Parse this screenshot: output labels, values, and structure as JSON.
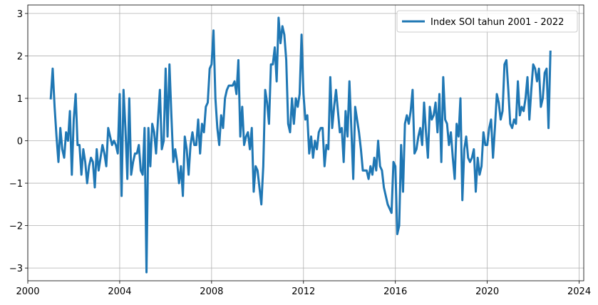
{
  "chart_data": {
    "type": "line",
    "title": "",
    "xlabel": "",
    "ylabel": "",
    "xlim": [
      2000.0,
      2024.2
    ],
    "ylim": [
      -3.3,
      3.2
    ],
    "x_ticks": [
      2000,
      2004,
      2008,
      2012,
      2016,
      2020,
      2024
    ],
    "y_ticks": [
      -3,
      -2,
      -1,
      0,
      1,
      2,
      3
    ],
    "x_tick_labels": [
      "2000",
      "2004",
      "2008",
      "2012",
      "2016",
      "2020",
      "2024"
    ],
    "y_tick_labels": [
      "−3",
      "−2",
      "−1",
      "0",
      "1",
      "2",
      "3"
    ],
    "grid": true,
    "legend": {
      "position": "top-right",
      "entries": [
        "Index SOI tahun 2001 - 2022"
      ]
    },
    "color": "#1f77b4",
    "series": [
      {
        "name": "Index SOI tahun 2001 - 2022",
        "x_start": 2001.0,
        "x_step": 0.0833333,
        "values": [
          1.0,
          1.7,
          0.8,
          0.1,
          -0.5,
          0.3,
          -0.2,
          -0.4,
          0.2,
          0.0,
          0.7,
          -0.8,
          0.5,
          1.1,
          -0.1,
          -0.1,
          -0.8,
          -0.2,
          -0.5,
          -1.0,
          -0.6,
          -0.4,
          -0.5,
          -1.1,
          -0.2,
          -0.7,
          -0.4,
          -0.1,
          -0.3,
          -0.6,
          0.3,
          0.1,
          -0.1,
          0.0,
          -0.1,
          -0.3,
          1.1,
          -1.3,
          1.2,
          0.3,
          -0.9,
          1.0,
          -0.8,
          -0.5,
          -0.3,
          -0.3,
          -0.1,
          -0.7,
          -0.8,
          0.3,
          -3.1,
          0.3,
          -0.6,
          0.4,
          0.2,
          -0.3,
          0.5,
          1.2,
          -0.2,
          0.0,
          1.7,
          0.1,
          1.8,
          0.6,
          -0.5,
          -0.2,
          -0.5,
          -1.0,
          -0.6,
          -1.3,
          0.1,
          -0.2,
          -0.8,
          -0.1,
          0.2,
          -0.1,
          -0.1,
          0.5,
          -0.3,
          0.4,
          0.2,
          0.8,
          0.9,
          1.7,
          1.8,
          2.6,
          1.0,
          0.3,
          -0.1,
          0.6,
          0.3,
          1.0,
          1.2,
          1.3,
          1.3,
          1.3,
          1.4,
          1.1,
          1.9,
          0.1,
          0.8,
          -0.1,
          0.1,
          0.2,
          -0.2,
          0.3,
          -1.2,
          -0.6,
          -0.7,
          -1.1,
          -1.5,
          -0.6,
          1.2,
          0.9,
          0.4,
          1.8,
          1.8,
          2.2,
          1.4,
          2.9,
          2.3,
          2.7,
          2.5,
          1.9,
          0.4,
          0.2,
          1.0,
          0.4,
          1.0,
          0.8,
          1.1,
          2.5,
          1.1,
          0.5,
          0.6,
          -0.3,
          0.1,
          -0.4,
          0.0,
          -0.2,
          0.2,
          0.3,
          0.3,
          -0.6,
          -0.1,
          -0.2,
          1.5,
          0.3,
          0.8,
          1.2,
          0.7,
          0.2,
          0.3,
          -0.5,
          0.7,
          0.1,
          1.4,
          0.3,
          -0.9,
          0.8,
          0.5,
          0.2,
          -0.2,
          -0.7,
          -0.7,
          -0.7,
          -0.9,
          -0.6,
          -0.8,
          -0.4,
          -0.7,
          0.0,
          -0.6,
          -0.7,
          -1.1,
          -1.3,
          -1.5,
          -1.6,
          -1.7,
          -0.5,
          -0.6,
          -2.2,
          -2.0,
          -0.1,
          -1.2,
          0.4,
          0.6,
          0.4,
          0.7,
          1.2,
          -0.3,
          -0.2,
          0.1,
          0.3,
          -0.1,
          0.9,
          0.2,
          -0.4,
          0.8,
          0.5,
          0.6,
          0.9,
          0.2,
          1.1,
          -0.5,
          1.5,
          0.5,
          0.4,
          -0.1,
          0.2,
          -0.4,
          -0.9,
          0.4,
          0.1,
          1.0,
          -1.4,
          -0.2,
          0.1,
          -0.4,
          -0.5,
          -0.4,
          -0.2,
          -1.2,
          -0.4,
          -0.8,
          -0.6,
          0.2,
          -0.1,
          -0.1,
          0.3,
          0.5,
          -0.4,
          0.3,
          1.1,
          0.9,
          0.5,
          0.7,
          1.8,
          1.9,
          1.2,
          0.4,
          0.3,
          0.5,
          0.4,
          1.4,
          0.6,
          0.8,
          0.7,
          1.0,
          1.5,
          0.5,
          1.2,
          1.8,
          1.7,
          1.4,
          1.7,
          0.8,
          1.0,
          1.6,
          1.7,
          0.3,
          2.1
        ]
      }
    ]
  }
}
